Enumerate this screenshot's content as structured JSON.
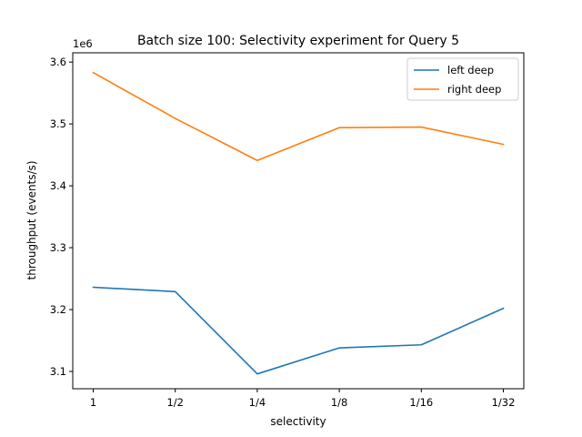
{
  "chart_data": {
    "type": "line",
    "title": "Batch size 100: Selectivity experiment for Query 5",
    "xlabel": "selectivity",
    "ylabel": "throughput (events/s)",
    "y_offset_label": "1e6",
    "categories": [
      "1",
      "1/2",
      "1/4",
      "1/8",
      "1/16",
      "1/32"
    ],
    "ylim": [
      3.072,
      3.615
    ],
    "yticks": [
      3.1,
      3.2,
      3.3,
      3.4,
      3.5,
      3.6
    ],
    "ytick_labels": [
      "3.1",
      "3.2",
      "3.3",
      "3.4",
      "3.5",
      "3.6"
    ],
    "grid": false,
    "legend_position": "top-right",
    "series": [
      {
        "name": "left deep",
        "color": "#1f77b4",
        "values": [
          3.236,
          3.229,
          3.096,
          3.138,
          3.143,
          3.202
        ]
      },
      {
        "name": "right deep",
        "color": "#ff7f0e",
        "values": [
          3.583,
          3.509,
          3.441,
          3.494,
          3.495,
          3.467
        ]
      }
    ]
  }
}
